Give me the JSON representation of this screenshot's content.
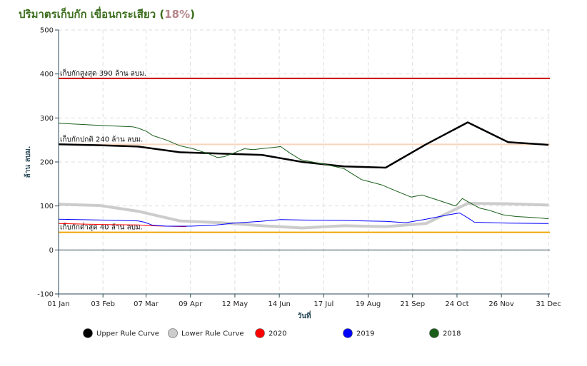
{
  "header": {
    "title_main": "ปริมาตรเก็บกัก เขื่อนกระเสียว (",
    "title_pct": "18%",
    "title_close": ")"
  },
  "colors": {
    "upper": "#000000",
    "lower": "#cccccc",
    "y2020": "#ff0000",
    "y2019": "#0000ff",
    "y2018": "#1a5e1a",
    "max_line": "#cc0000",
    "normal_line": "#f8d4bc",
    "min_line": "#f0a500",
    "zero_line": "#2c4a5a"
  },
  "chart_data": {
    "type": "line",
    "ylabel": "ล้าน ลบม.",
    "xlabel": "วันที่",
    "ylim": [
      -100,
      500
    ],
    "yticks": [
      -100,
      0,
      100,
      200,
      300,
      400,
      500
    ],
    "xlim": [
      0,
      365
    ],
    "xticks": [
      {
        "day": 0,
        "label": "01 Jan"
      },
      {
        "day": 33,
        "label": "03 Feb"
      },
      {
        "day": 65,
        "label": "07 Mar"
      },
      {
        "day": 98,
        "label": "09 Apr"
      },
      {
        "day": 131,
        "label": "12 May"
      },
      {
        "day": 164,
        "label": "14 Jun"
      },
      {
        "day": 197,
        "label": "17 Jul"
      },
      {
        "day": 230,
        "label": "19 Aug"
      },
      {
        "day": 263,
        "label": "21 Sep"
      },
      {
        "day": 296,
        "label": "24 Oct"
      },
      {
        "day": 329,
        "label": "26 Nov"
      },
      {
        "day": 364,
        "label": "31 Dec"
      }
    ],
    "grid": true,
    "reference_lines": [
      {
        "label": "เก็บกักสูงสุด 390 ล้าน ลบม.",
        "value": 390,
        "color": "#cc0000"
      },
      {
        "label": "เก็บกักปกติ 240 ล้าน ลบม.",
        "value": 240,
        "color": "#f8d4bc"
      },
      {
        "label": "เก็บกักต่ำสุด 40 ล้าน ลบม.",
        "value": 40,
        "color": "#f0a500"
      }
    ],
    "series": [
      {
        "name": "Upper Rule Curve",
        "color": "#000000",
        "width": 2.5,
        "x": [
          0,
          31,
          59,
          90,
          120,
          151,
          181,
          212,
          243,
          273,
          304,
          334,
          364
        ],
        "y": [
          240,
          238,
          235,
          222,
          219,
          216,
          200,
          190,
          187,
          240,
          290,
          245,
          239
        ]
      },
      {
        "name": "Lower Rule Curve",
        "color": "#cccccc",
        "width": 4,
        "x": [
          0,
          31,
          59,
          90,
          120,
          151,
          181,
          212,
          243,
          273,
          304,
          334,
          364
        ],
        "y": [
          104,
          101,
          88,
          66,
          62,
          55,
          50,
          55,
          53,
          60,
          106,
          105,
          102
        ]
      },
      {
        "name": "2020",
        "color": "#ff0000",
        "width": 1,
        "x": [
          0,
          31,
          59,
          67,
          80,
          95
        ],
        "y": [
          60,
          58,
          57,
          55,
          54,
          53
        ]
      },
      {
        "name": "2019",
        "color": "#0000ff",
        "width": 1,
        "x": [
          0,
          31,
          59,
          64,
          70,
          80,
          98,
          115,
          121,
          130,
          140,
          150,
          165,
          181,
          212,
          243,
          258,
          273,
          290,
          298,
          304,
          309,
          334,
          364
        ],
        "y": [
          70,
          68,
          66,
          63,
          56,
          54,
          54,
          56,
          58,
          61,
          63,
          65,
          69,
          68,
          67,
          65,
          62,
          70,
          80,
          84,
          73,
          63,
          61,
          60
        ]
      },
      {
        "name": "2018",
        "color": "#1a5e1a",
        "width": 1,
        "x": [
          0,
          31,
          55,
          59,
          65,
          70,
          80,
          90,
          100,
          105,
          112,
          118,
          123,
          130,
          138,
          145,
          150,
          160,
          165,
          172,
          180,
          200,
          212,
          225,
          240,
          250,
          262,
          270,
          280,
          290,
          295,
          300,
          305,
          313,
          320,
          330,
          340,
          352,
          364
        ],
        "y": [
          288,
          283,
          280,
          277,
          270,
          260,
          250,
          237,
          230,
          225,
          218,
          210,
          212,
          220,
          230,
          228,
          230,
          233,
          235,
          220,
          205,
          193,
          185,
          160,
          148,
          135,
          120,
          125,
          115,
          105,
          100,
          117,
          108,
          95,
          90,
          80,
          76,
          74,
          71
        ]
      }
    ]
  },
  "legend": [
    {
      "label": "Upper Rule Curve",
      "color": "#000000",
      "icon": "circle-icon"
    },
    {
      "label": "Lower Rule Curve",
      "color": "#cccccc",
      "icon": "circle-icon"
    },
    {
      "label": "2020",
      "color": "#ff0000",
      "icon": "circle-icon"
    },
    {
      "label": "2019",
      "color": "#0000ff",
      "icon": "circle-icon"
    },
    {
      "label": "2018",
      "color": "#1a5e1a",
      "icon": "circle-icon"
    }
  ]
}
